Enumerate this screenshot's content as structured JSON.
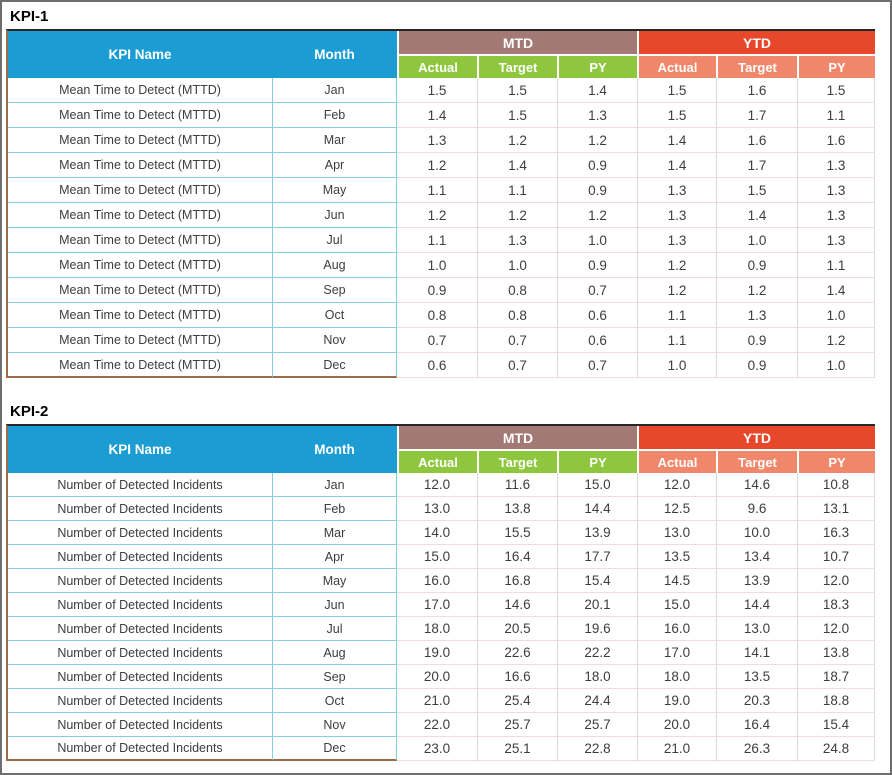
{
  "colors": {
    "header_blue": "#1B9CD3",
    "mtd_band": "#A27974",
    "ytd_band": "#E7472B",
    "mtd_sub": "#8EC73E",
    "ytd_sub": "#F0876B",
    "brown_border": "#9C6B49",
    "line_cyan": "#86CFDF",
    "line_pink": "#F2DCDA",
    "line_gray": "#D9D9D9",
    "text_dark": "#3D3D3D",
    "frame_border": "#6E6E6E"
  },
  "tables": [
    {
      "title": "KPI-1",
      "header": {
        "kpi_name": "KPI Name",
        "month": "Month",
        "mtd": "MTD",
        "ytd": "YTD",
        "sub": [
          "Actual",
          "Target",
          "PY"
        ]
      },
      "rows": [
        {
          "kpi": "Mean Time to Detect (MTTD)",
          "month": "Jan",
          "mtd": [
            "1.5",
            "1.5",
            "1.4"
          ],
          "ytd": [
            "1.5",
            "1.6",
            "1.5"
          ]
        },
        {
          "kpi": "Mean Time to Detect (MTTD)",
          "month": "Feb",
          "mtd": [
            "1.4",
            "1.5",
            "1.3"
          ],
          "ytd": [
            "1.5",
            "1.7",
            "1.1"
          ]
        },
        {
          "kpi": "Mean Time to Detect (MTTD)",
          "month": "Mar",
          "mtd": [
            "1.3",
            "1.2",
            "1.2"
          ],
          "ytd": [
            "1.4",
            "1.6",
            "1.6"
          ]
        },
        {
          "kpi": "Mean Time to Detect (MTTD)",
          "month": "Apr",
          "mtd": [
            "1.2",
            "1.4",
            "0.9"
          ],
          "ytd": [
            "1.4",
            "1.7",
            "1.3"
          ]
        },
        {
          "kpi": "Mean Time to Detect (MTTD)",
          "month": "May",
          "mtd": [
            "1.1",
            "1.1",
            "0.9"
          ],
          "ytd": [
            "1.3",
            "1.5",
            "1.3"
          ]
        },
        {
          "kpi": "Mean Time to Detect (MTTD)",
          "month": "Jun",
          "mtd": [
            "1.2",
            "1.2",
            "1.2"
          ],
          "ytd": [
            "1.3",
            "1.4",
            "1.3"
          ]
        },
        {
          "kpi": "Mean Time to Detect (MTTD)",
          "month": "Jul",
          "mtd": [
            "1.1",
            "1.3",
            "1.0"
          ],
          "ytd": [
            "1.3",
            "1.0",
            "1.3"
          ]
        },
        {
          "kpi": "Mean Time to Detect (MTTD)",
          "month": "Aug",
          "mtd": [
            "1.0",
            "1.0",
            "0.9"
          ],
          "ytd": [
            "1.2",
            "0.9",
            "1.1"
          ]
        },
        {
          "kpi": "Mean Time to Detect (MTTD)",
          "month": "Sep",
          "mtd": [
            "0.9",
            "0.8",
            "0.7"
          ],
          "ytd": [
            "1.2",
            "1.2",
            "1.4"
          ]
        },
        {
          "kpi": "Mean Time to Detect (MTTD)",
          "month": "Oct",
          "mtd": [
            "0.8",
            "0.8",
            "0.6"
          ],
          "ytd": [
            "1.1",
            "1.3",
            "1.0"
          ]
        },
        {
          "kpi": "Mean Time to Detect (MTTD)",
          "month": "Nov",
          "mtd": [
            "0.7",
            "0.7",
            "0.6"
          ],
          "ytd": [
            "1.1",
            "0.9",
            "1.2"
          ]
        },
        {
          "kpi": "Mean Time to Detect (MTTD)",
          "month": "Dec",
          "mtd": [
            "0.6",
            "0.7",
            "0.7"
          ],
          "ytd": [
            "1.0",
            "0.9",
            "1.0"
          ]
        }
      ]
    },
    {
      "title": "KPI-2",
      "header": {
        "kpi_name": "KPI Name",
        "month": "Month",
        "mtd": "MTD",
        "ytd": "YTD",
        "sub": [
          "Actual",
          "Target",
          "PY"
        ]
      },
      "rows": [
        {
          "kpi": "Number of Detected Incidents",
          "month": "Jan",
          "mtd": [
            "12.0",
            "11.6",
            "15.0"
          ],
          "ytd": [
            "12.0",
            "14.6",
            "10.8"
          ]
        },
        {
          "kpi": "Number of Detected Incidents",
          "month": "Feb",
          "mtd": [
            "13.0",
            "13.8",
            "14.4"
          ],
          "ytd": [
            "12.5",
            "9.6",
            "13.1"
          ]
        },
        {
          "kpi": "Number of Detected Incidents",
          "month": "Mar",
          "mtd": [
            "14.0",
            "15.5",
            "13.9"
          ],
          "ytd": [
            "13.0",
            "10.0",
            "16.3"
          ]
        },
        {
          "kpi": "Number of Detected Incidents",
          "month": "Apr",
          "mtd": [
            "15.0",
            "16.4",
            "17.7"
          ],
          "ytd": [
            "13.5",
            "13.4",
            "10.7"
          ]
        },
        {
          "kpi": "Number of Detected Incidents",
          "month": "May",
          "mtd": [
            "16.0",
            "16.8",
            "15.4"
          ],
          "ytd": [
            "14.5",
            "13.9",
            "12.0"
          ]
        },
        {
          "kpi": "Number of Detected Incidents",
          "month": "Jun",
          "mtd": [
            "17.0",
            "14.6",
            "20.1"
          ],
          "ytd": [
            "15.0",
            "14.4",
            "18.3"
          ]
        },
        {
          "kpi": "Number of Detected Incidents",
          "month": "Jul",
          "mtd": [
            "18.0",
            "20.5",
            "19.6"
          ],
          "ytd": [
            "16.0",
            "13.0",
            "12.0"
          ]
        },
        {
          "kpi": "Number of Detected Incidents",
          "month": "Aug",
          "mtd": [
            "19.0",
            "22.6",
            "22.2"
          ],
          "ytd": [
            "17.0",
            "14.1",
            "13.8"
          ]
        },
        {
          "kpi": "Number of Detected Incidents",
          "month": "Sep",
          "mtd": [
            "20.0",
            "16.6",
            "18.0"
          ],
          "ytd": [
            "18.0",
            "13.5",
            "18.7"
          ]
        },
        {
          "kpi": "Number of Detected Incidents",
          "month": "Oct",
          "mtd": [
            "21.0",
            "25.4",
            "24.4"
          ],
          "ytd": [
            "19.0",
            "20.3",
            "18.8"
          ]
        },
        {
          "kpi": "Number of Detected Incidents",
          "month": "Nov",
          "mtd": [
            "22.0",
            "25.7",
            "25.7"
          ],
          "ytd": [
            "20.0",
            "16.4",
            "15.4"
          ]
        },
        {
          "kpi": "Number of Detected Incidents",
          "month": "Dec",
          "mtd": [
            "23.0",
            "25.1",
            "22.8"
          ],
          "ytd": [
            "21.0",
            "26.3",
            "24.8"
          ]
        }
      ]
    }
  ]
}
